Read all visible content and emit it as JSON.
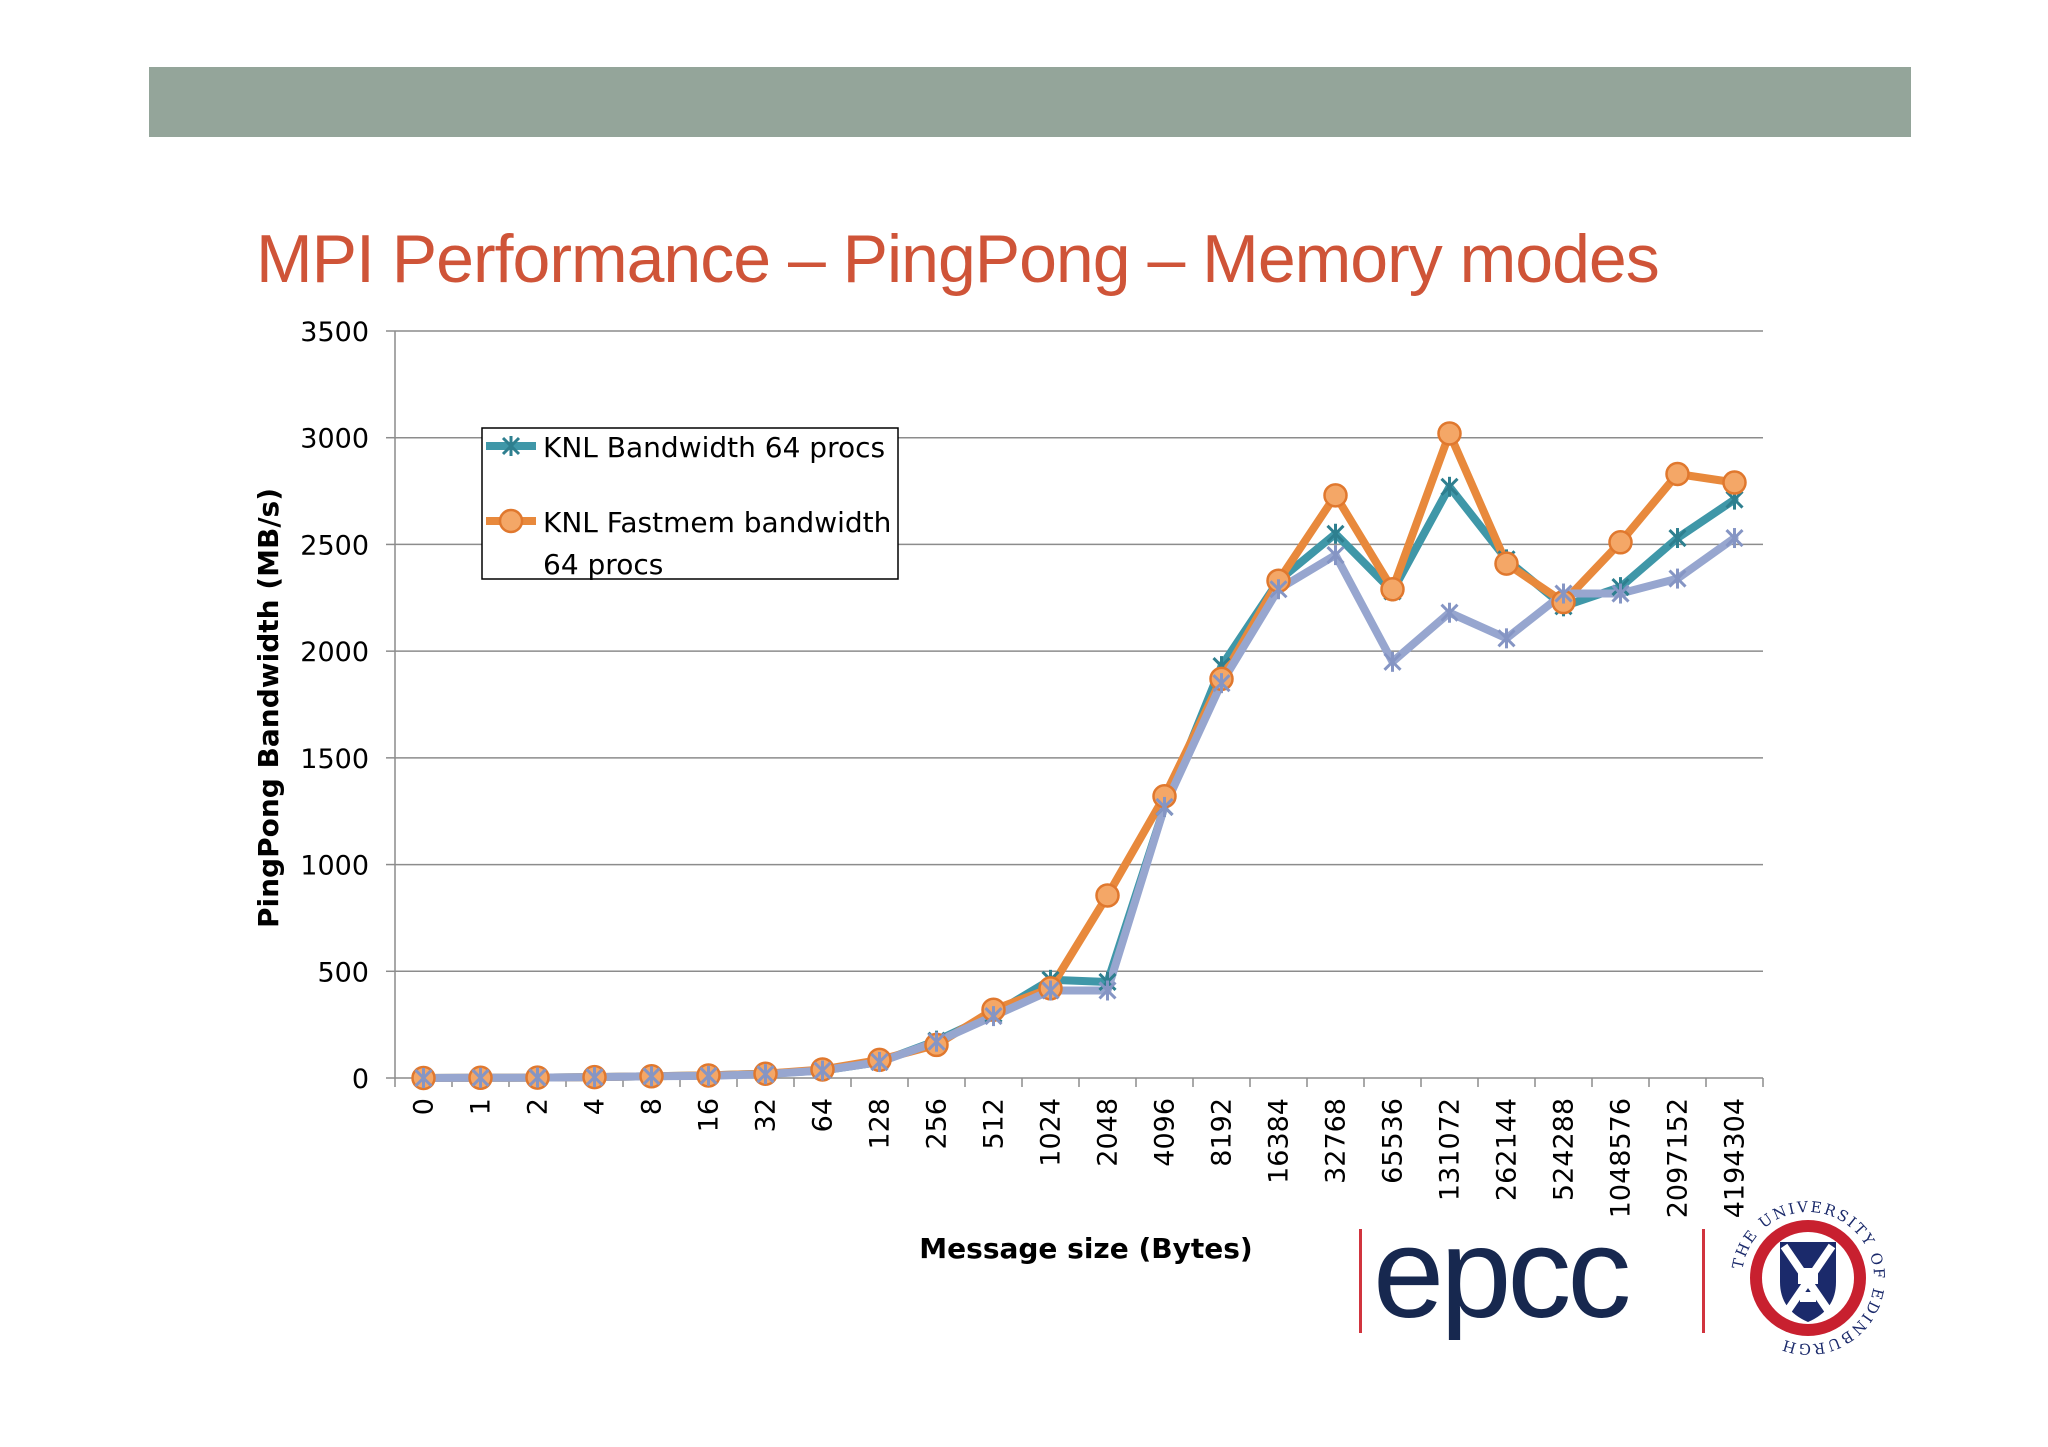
{
  "slide": {
    "title": "MPI Performance – PingPong – Memory modes",
    "header_color": "#94a59a",
    "title_color": "#cf5438"
  },
  "logos": {
    "epcc": "epcc",
    "university": "THE UNIVERSITY OF EDINBURGH"
  },
  "chart_data": {
    "type": "line",
    "title": "",
    "xlabel": "Message size (Bytes)",
    "ylabel": "PingPong Bandwidth (MB/s)",
    "ylim": [
      0,
      3500
    ],
    "yticks": [
      0,
      500,
      1000,
      1500,
      2000,
      2500,
      3000,
      3500
    ],
    "grid": true,
    "legend_position": "top-left",
    "categories": [
      "0",
      "1",
      "2",
      "4",
      "8",
      "16",
      "32",
      "64",
      "128",
      "256",
      "512",
      "1024",
      "2048",
      "4096",
      "8192",
      "16384",
      "32768",
      "65536",
      "131072",
      "262144",
      "524288",
      "1048576",
      "2097152",
      "4194304"
    ],
    "series": [
      {
        "name": "KNL Bandwidth 64 procs",
        "color": "#3f97a8",
        "marker": "star",
        "values": [
          0,
          1,
          2,
          4,
          8,
          12,
          20,
          35,
          75,
          175,
          300,
          460,
          450,
          1270,
          1930,
          2330,
          2550,
          2280,
          2770,
          2430,
          2210,
          2300,
          2530,
          2710
        ]
      },
      {
        "name": "KNL Fastmem bandwidth 64 procs",
        "color": "#e8893c",
        "marker": "circle",
        "values": [
          0,
          1,
          2,
          4,
          8,
          12,
          20,
          40,
          85,
          155,
          320,
          420,
          855,
          1320,
          1870,
          2330,
          2730,
          2290,
          3020,
          2410,
          2230,
          2510,
          2830,
          2790
        ]
      },
      {
        "name": "",
        "color": "#97a6cf",
        "marker": "star",
        "values": [
          0,
          1,
          2,
          4,
          8,
          10,
          18,
          35,
          75,
          170,
          290,
          410,
          410,
          1270,
          1850,
          2290,
          2450,
          1950,
          2180,
          2060,
          2270,
          2270,
          2340,
          2530
        ]
      }
    ],
    "legend_entries": [
      {
        "line1": "KNL Bandwidth 64 procs",
        "line2": ""
      },
      {
        "line1": "KNL Fastmem bandwidth",
        "line2": "64 procs"
      }
    ]
  }
}
